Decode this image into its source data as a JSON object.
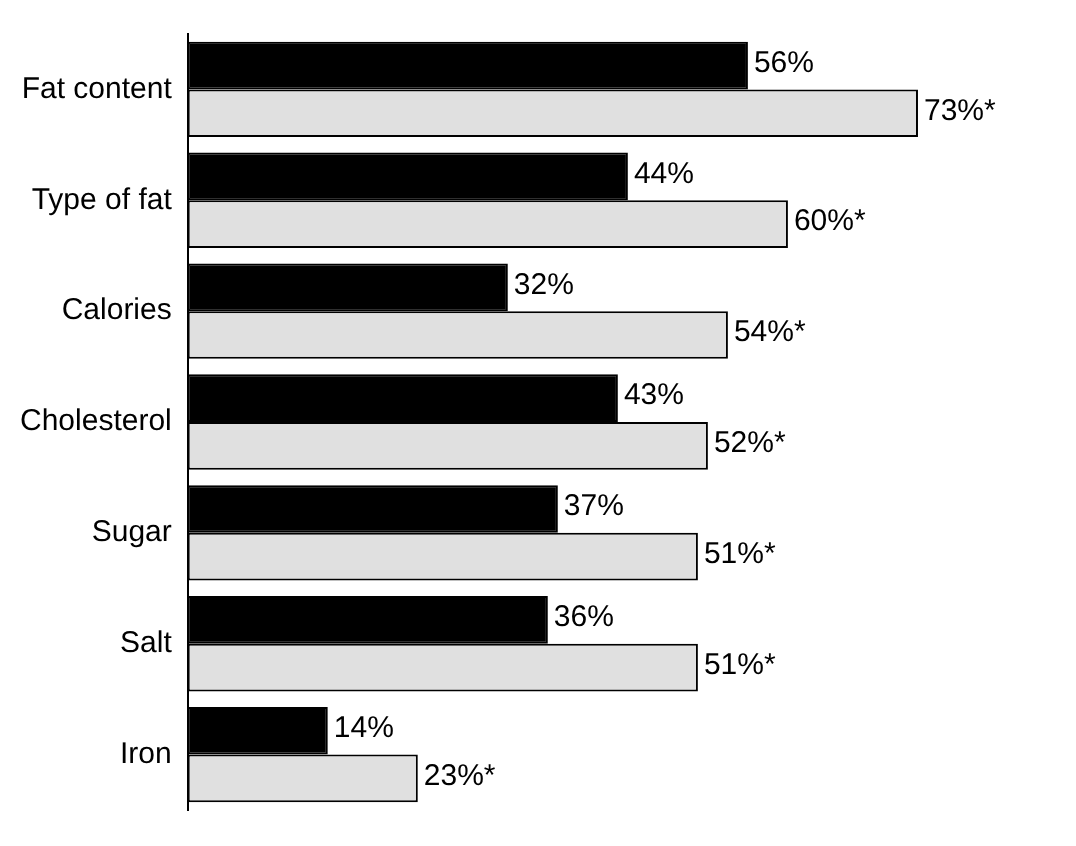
{
  "chart_data": {
    "type": "bar",
    "orientation": "horizontal",
    "categories": [
      "Fat content",
      "Type of fat",
      "Calories",
      "Cholesterol",
      "Sugar",
      "Salt",
      "Iron"
    ],
    "series": [
      {
        "color": "#000000",
        "values": [
          56,
          44,
          32,
          43,
          37,
          36,
          14
        ],
        "value_labels": [
          "56%",
          "44%",
          "32%",
          "43%",
          "37%",
          "36%",
          "14%"
        ]
      },
      {
        "color": "#e0e0e0",
        "values": [
          73,
          60,
          54,
          52,
          51,
          51,
          23
        ],
        "value_labels": [
          "73%*",
          "60%*",
          "54%*",
          "52%*",
          "51%*",
          "51%*",
          "23%*"
        ]
      }
    ],
    "tick_labels": "y",
    "legend": false
  }
}
